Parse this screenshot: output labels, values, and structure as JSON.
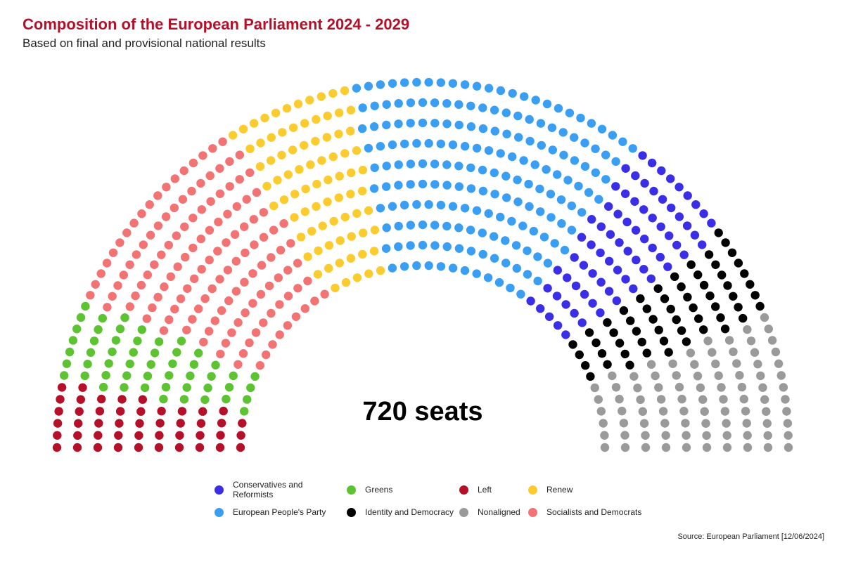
{
  "header": {
    "title": "Composition of the European Parliament 2024 - 2029",
    "subtitle": "Based on final and provisional national results"
  },
  "chart_data": {
    "type": "parliament",
    "center_label": "720 seats",
    "total_seats": 720,
    "rows": 10,
    "seat_order": [
      "left",
      "greens",
      "sd",
      "renew",
      "epp",
      "ecr",
      "id",
      "ni"
    ],
    "parties": [
      {
        "key": "left",
        "name": "Left",
        "seats": 46,
        "color": "#b5102a"
      },
      {
        "key": "greens",
        "name": "Greens",
        "seats": 53,
        "color": "#5ec333"
      },
      {
        "key": "sd",
        "name": "Socialists and Democrats",
        "seats": 136,
        "color": "#f27373"
      },
      {
        "key": "renew",
        "name": "Renew",
        "seats": 80,
        "color": "#fbcc2f"
      },
      {
        "key": "epp",
        "name": "European People's Party",
        "seats": 186,
        "color": "#3a9ef2"
      },
      {
        "key": "ecr",
        "name": "Conservatives and Reformists",
        "seats": 73,
        "color": "#3a2fe6"
      },
      {
        "key": "id",
        "name": "Identity and Democracy",
        "seats": 58,
        "color": "#000000"
      },
      {
        "key": "ni",
        "name": "Nonaligned",
        "seats": 88,
        "color": "#9a9a9a"
      }
    ],
    "legend_order": [
      "ecr",
      "greens",
      "left",
      "renew",
      "epp",
      "id",
      "ni",
      "sd"
    ]
  },
  "footer": {
    "source": "Source: European Parliament [12/06/2024]"
  }
}
